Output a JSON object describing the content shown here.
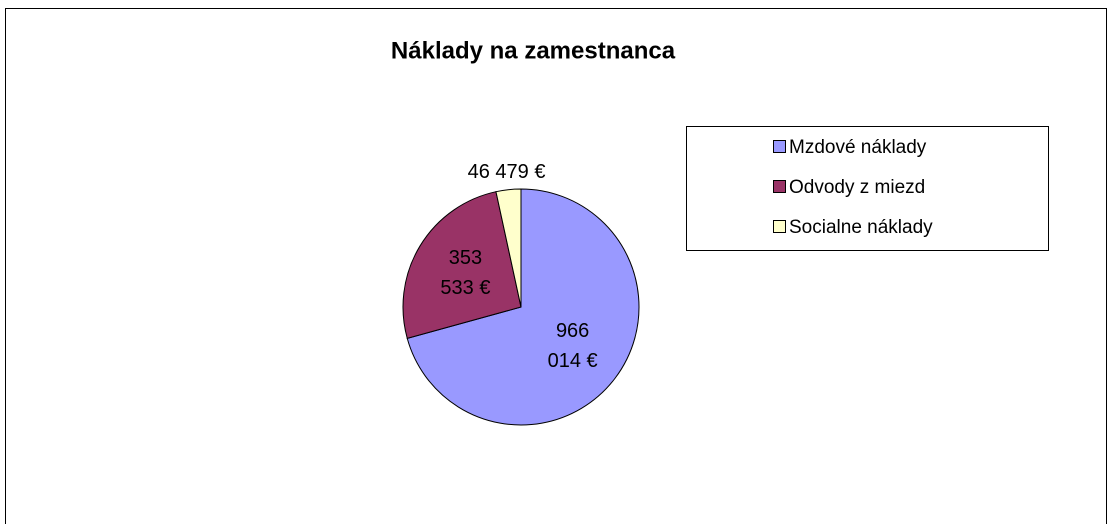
{
  "chart_data": {
    "type": "pie",
    "title": "Náklady na zamestnanca",
    "categories": [
      "Mzdové náklady",
      "Odvody z miezd",
      "Socialne náklady"
    ],
    "values": [
      966014,
      353533,
      46479
    ],
    "value_labels": [
      "966 014 €",
      "353 533 €",
      "46 479 €"
    ],
    "colors": [
      "#9999ff",
      "#993366",
      "#ffffcc"
    ],
    "legend": "right"
  }
}
